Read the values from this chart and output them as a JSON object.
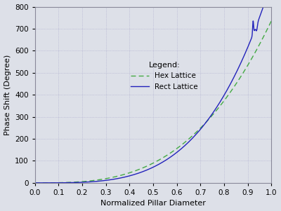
{
  "title": "",
  "xlabel": "Normalized Pillar Diameter",
  "ylabel": "Phase Shift (Degree)",
  "xlim": [
    0.0,
    1.0
  ],
  "ylim": [
    0,
    800
  ],
  "yticks": [
    0,
    100,
    200,
    300,
    400,
    500,
    600,
    700,
    800
  ],
  "xticks": [
    0.0,
    0.1,
    0.2,
    0.3,
    0.4,
    0.5,
    0.6,
    0.7,
    0.8,
    0.9,
    1.0
  ],
  "legend_title": "Legend:",
  "legend_labels": [
    "Rect Lattice",
    "Hex Lattice"
  ],
  "rect_color": "#2222bb",
  "hex_color": "#44aa44",
  "background_color": "#dde0e8",
  "grid_color": "#aaaacc",
  "fig_bg": "#c8ccd8"
}
